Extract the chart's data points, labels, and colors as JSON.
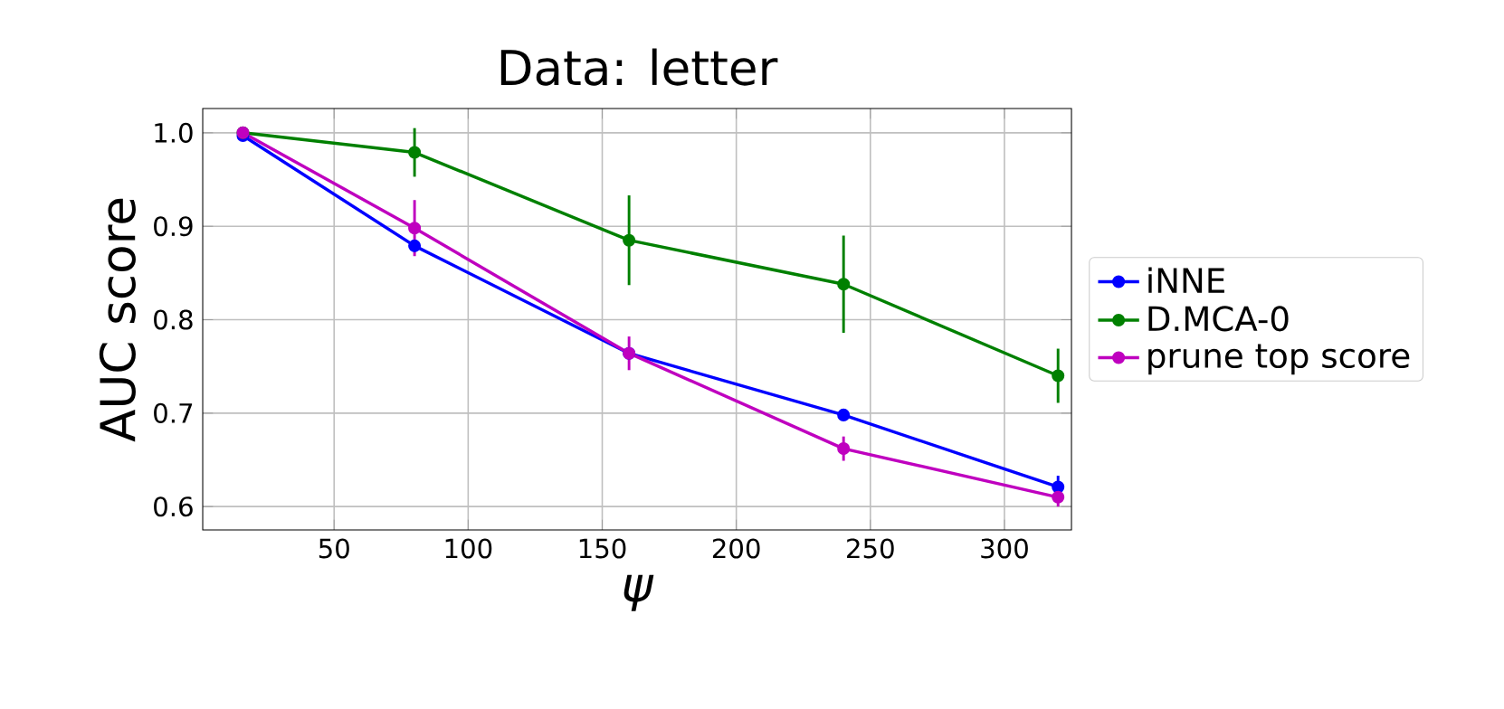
{
  "chart_data": {
    "type": "line",
    "title": "Data: letter",
    "xlabel": "ψ",
    "ylabel": "AUC score",
    "x": [
      16,
      80,
      160,
      240,
      320
    ],
    "series": [
      {
        "name": "iNNE",
        "color": "#0000ff",
        "values": [
          0.997,
          0.879,
          0.764,
          0.698,
          0.621
        ],
        "errors": [
          null,
          null,
          null,
          null,
          0.012
        ]
      },
      {
        "name": "D.MCA-0",
        "color": "#008000",
        "values": [
          1.0,
          0.979,
          0.885,
          0.838,
          0.74
        ],
        "errors": [
          null,
          0.026,
          0.048,
          0.052,
          0.029
        ]
      },
      {
        "name": "prune top score",
        "color": "#bf00bf",
        "values": [
          1.0,
          0.898,
          0.764,
          0.662,
          0.61
        ],
        "errors": [
          null,
          0.03,
          0.018,
          0.013,
          0.01
        ]
      }
    ],
    "xlim": [
      1,
      325
    ],
    "ylim": [
      0.575,
      1.026
    ],
    "xticks": [
      50,
      100,
      150,
      200,
      250,
      300
    ],
    "yticks": [
      {
        "value": 0.6,
        "label": "0.6"
      },
      {
        "value": 0.7,
        "label": "0.7"
      },
      {
        "value": 0.8,
        "label": "0.8"
      },
      {
        "value": 0.9,
        "label": "0.9"
      },
      {
        "value": 1.0,
        "label": "1.0"
      }
    ],
    "grid": true,
    "legend": "right",
    "marker": "circle",
    "line_style": "solid"
  }
}
